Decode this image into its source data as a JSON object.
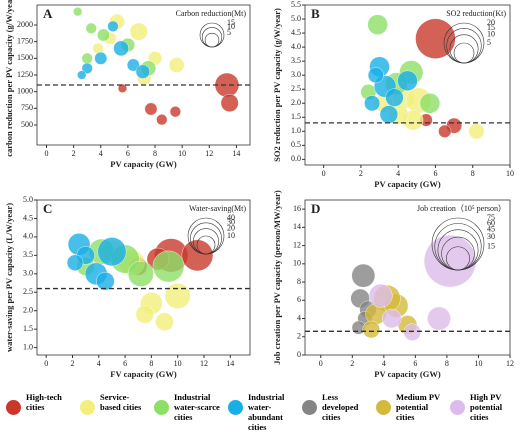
{
  "chart_data": [
    {
      "type": "scatter",
      "label": "A",
      "size_title": "Carbon reduction(Mt)",
      "size_values": [
        15,
        10,
        5
      ],
      "xlabel": "PV capacity (GW)",
      "ylabel": "carbon reduction per PV capacity (g/W/year)",
      "xlim": [
        -0.7,
        15
      ],
      "xticks": [
        0,
        2,
        4,
        6,
        8,
        10,
        12,
        14
      ],
      "ylim": [
        200,
        2300
      ],
      "yticks": [
        500,
        750,
        1000,
        1250,
        1500,
        1750,
        2000
      ],
      "ref_line": 1100,
      "series": [
        {
          "name": "High-tech cities",
          "color": "#c8392b",
          "x": [
            13.3,
            13.5,
            7.7,
            8.5,
            9.5,
            5.6
          ],
          "values": [
            1100,
            830,
            740,
            580,
            700,
            1050
          ],
          "sizes": [
            15,
            8,
            4,
            3,
            3,
            2
          ]
        },
        {
          "name": "Service-based cities",
          "color": "#f3ef7c",
          "x": [
            5.2,
            6.8,
            8.0,
            9.6,
            4.7,
            3.8,
            7.2
          ],
          "values": [
            2050,
            1900,
            1500,
            1400,
            1800,
            1650,
            1200
          ],
          "sizes": [
            6,
            8,
            5,
            6,
            4,
            3,
            5
          ]
        },
        {
          "name": "Industrial water-scarce cities",
          "color": "#8ddf66",
          "x": [
            2.3,
            3.3,
            4.2,
            6.0,
            7.5,
            3.0
          ],
          "values": [
            2200,
            1950,
            1850,
            1700,
            1350,
            1500
          ],
          "sizes": [
            2,
            3,
            4,
            5,
            6,
            3
          ]
        },
        {
          "name": "Industrial water-abundant cities",
          "color": "#1aaee6",
          "x": [
            4.9,
            5.5,
            6.4,
            3.0,
            2.6,
            4.0,
            7.1
          ],
          "values": [
            1980,
            1650,
            1400,
            1350,
            1250,
            1500,
            1300
          ],
          "sizes": [
            3,
            6,
            4,
            3,
            2,
            4,
            5
          ]
        }
      ]
    },
    {
      "type": "scatter",
      "label": "B",
      "size_title": "SO2 reduction(Kt)",
      "size_values": [
        20,
        15,
        10,
        5
      ],
      "xlabel": "PV capacity (GW)",
      "ylabel": "SO2 reduction per PV capacity (g/W/year)",
      "xlim": [
        -1,
        10
      ],
      "xticks": [
        0,
        2,
        4,
        6,
        8,
        10
      ],
      "ylim": [
        -0.2,
        5.5
      ],
      "yticks": [
        {
          "value": 0,
          "label": "0.0"
        },
        0.5,
        {
          "value": 1,
          "label": "1.0"
        },
        1.5,
        {
          "value": 2,
          "label": "2.0"
        },
        2.5,
        {
          "value": 3,
          "label": "3.0"
        },
        3.5,
        {
          "value": 4,
          "label": "4.0"
        },
        4.5,
        {
          "value": 5,
          "label": "5.0"
        },
        5.5
      ],
      "ref_line": 1.3,
      "series": [
        {
          "color": "#c8392b",
          "x": [
            6.0,
            7.0,
            6.5,
            5.5
          ],
          "values": [
            4.3,
            1.2,
            1.0,
            1.4
          ],
          "sizes": [
            20,
            3,
            2,
            2
          ]
        },
        {
          "color": "#f3ef7c",
          "x": [
            4.3,
            5.1,
            4.8,
            8.2,
            3.2,
            4.0
          ],
          "values": [
            2.2,
            2.1,
            1.4,
            1.0,
            2.0,
            1.6
          ],
          "sizes": [
            6,
            8,
            5,
            3,
            4,
            5
          ]
        },
        {
          "color": "#8ddf66",
          "x": [
            2.9,
            4.7,
            3.9,
            5.7,
            2.4
          ],
          "values": [
            4.8,
            3.1,
            2.7,
            2.0,
            2.4
          ],
          "sizes": [
            5,
            7,
            6,
            5,
            3
          ]
        },
        {
          "color": "#1aaee6",
          "x": [
            3.0,
            3.3,
            3.8,
            4.5,
            2.6,
            2.8,
            3.5
          ],
          "values": [
            3.3,
            2.6,
            2.2,
            2.8,
            2.0,
            3.0,
            1.6
          ],
          "sizes": [
            5,
            6,
            4,
            5,
            3,
            3,
            4
          ]
        }
      ]
    },
    {
      "type": "scatter",
      "label": "C",
      "size_title": "Water-saving(Mt)",
      "size_values": [
        40,
        30,
        20,
        10
      ],
      "xlabel": "FV capacity (GW)",
      "ylabel": "water-saving per PV capacity (L/W/year)",
      "xlim": [
        -0.7,
        15.5
      ],
      "xticks": [
        0,
        2,
        4,
        6,
        8,
        10,
        12,
        14
      ],
      "ylim": [
        0.8,
        5.0
      ],
      "yticks": [
        {
          "value": 1,
          "label": "1.0"
        },
        1.5,
        {
          "value": 2,
          "label": "2.0"
        },
        2.5,
        {
          "value": 3,
          "label": "3.0"
        },
        3.5,
        {
          "value": 4,
          "label": "4.0"
        },
        4.5,
        {
          "value": 5,
          "label": "5.0"
        }
      ],
      "ref_line": 2.6,
      "series": [
        {
          "color": "#c8392b",
          "x": [
            9.5,
            11.5,
            7.0,
            8.5
          ],
          "values": [
            3.5,
            3.5,
            3.2,
            3.4
          ],
          "sizes": [
            35,
            30,
            10,
            15
          ]
        },
        {
          "color": "#f3ef7c",
          "x": [
            5.0,
            6.5,
            8.0,
            10.0,
            7.5,
            9.0
          ],
          "values": [
            3.6,
            3.3,
            2.2,
            2.4,
            1.9,
            1.7
          ],
          "sizes": [
            15,
            20,
            15,
            20,
            10,
            10
          ]
        },
        {
          "color": "#8ddf66",
          "x": [
            4.2,
            6.0,
            7.2,
            9.3,
            3.0
          ],
          "values": [
            3.6,
            3.4,
            3.0,
            3.2,
            3.2
          ],
          "sizes": [
            20,
            25,
            20,
            30,
            10
          ]
        },
        {
          "color": "#1aaee6",
          "x": [
            2.5,
            3.0,
            5.0,
            3.8,
            2.2,
            4.5
          ],
          "values": [
            3.8,
            3.5,
            3.6,
            3.0,
            3.3,
            2.8
          ],
          "sizes": [
            15,
            10,
            25,
            15,
            8,
            10
          ]
        }
      ]
    },
    {
      "type": "scatter",
      "label": "D",
      "size_title": "Job creation（10⁵ person）",
      "size_values": [
        75,
        60,
        45,
        30,
        15
      ],
      "xlabel": "PV capacity (GW)",
      "ylabel": "Job creation per PV capacity (person/MW/year)",
      "xlim": [
        -1,
        12
      ],
      "xticks": [
        0,
        2,
        4,
        6,
        8,
        10,
        12
      ],
      "ylim": [
        0,
        17
      ],
      "yticks": [
        0,
        2,
        4,
        6,
        8,
        10,
        12,
        14,
        16
      ],
      "ref_line": 2.6,
      "series": [
        {
          "name": "Less developed cities",
          "color": "#858585",
          "x": [
            2.7,
            2.5,
            3.0,
            2.8,
            2.4
          ],
          "values": [
            8.7,
            6.2,
            5.0,
            4.0,
            3.0
          ],
          "sizes": [
            15,
            10,
            8,
            6,
            5
          ]
        },
        {
          "name": "Medium PV potential cities",
          "color": "#d5b93b",
          "x": [
            4.8,
            4.2,
            5.5,
            3.5,
            3.2
          ],
          "values": [
            5.4,
            6.2,
            3.3,
            4.5,
            2.8
          ],
          "sizes": [
            15,
            20,
            10,
            12,
            8
          ]
        },
        {
          "name": "High PV potential cities",
          "color": "#dcbbea",
          "x": [
            8.2,
            3.8,
            7.5,
            5.8,
            4.5
          ],
          "values": [
            10.3,
            6.5,
            4.0,
            2.5,
            4.0
          ],
          "sizes": [
            75,
            15,
            15,
            8,
            10
          ]
        }
      ]
    }
  ]
}
